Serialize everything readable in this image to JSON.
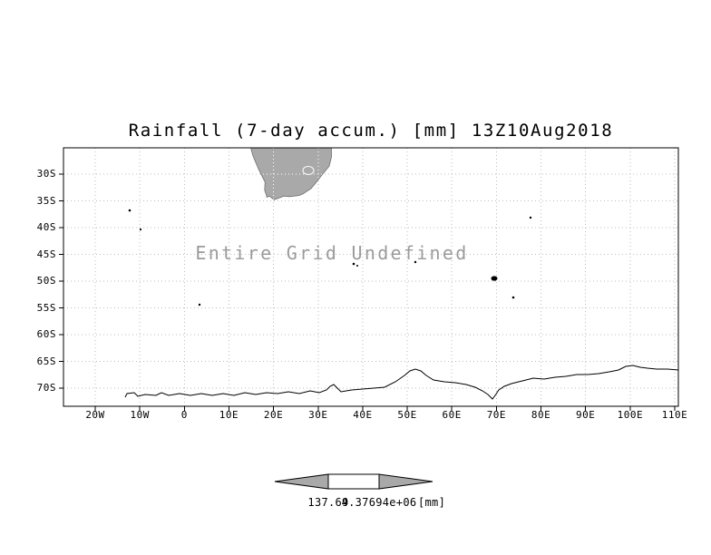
{
  "chart": {
    "title": "Rainfall (7-day accum.) [mm] 13Z10Aug2018",
    "undefined_label": "Entire Grid Undefined",
    "y_ticks": [
      "30S",
      "35S",
      "40S",
      "45S",
      "50S",
      "55S",
      "60S",
      "65S",
      "70S"
    ],
    "x_ticks": [
      "20W",
      "10W",
      "0",
      "10E",
      "20E",
      "30E",
      "40E",
      "50E",
      "60E",
      "70E",
      "80E",
      "90E",
      "100E",
      "110E"
    ],
    "colorbar": {
      "left_label": "137.69",
      "right_label": "4.37694e+06",
      "units_label": "[mm]"
    }
  },
  "colors": {
    "land_fill": "#a9a9a9",
    "land_outline": "#6e6e6e",
    "grid_line": "#bdbdbd",
    "grid_line_over_land": "#ffffff",
    "undefined_text": "#9b9b9b",
    "coast_line": "#000000",
    "frame": "#000000"
  },
  "chart_data": {
    "type": "heatmap",
    "title": "Rainfall (7-day accum.) [mm] 13Z10Aug2018",
    "xlabel": "",
    "ylabel": "",
    "x_tick_labels": [
      "20W",
      "10W",
      "0",
      "10E",
      "20E",
      "30E",
      "40E",
      "50E",
      "60E",
      "70E",
      "80E",
      "90E",
      "100E",
      "110E"
    ],
    "y_tick_labels": [
      "30S",
      "35S",
      "40S",
      "45S",
      "50S",
      "55S",
      "60S",
      "65S",
      "70S"
    ],
    "grid": true,
    "legend_position": "none",
    "values": [],
    "data_status": "Entire Grid Undefined",
    "annotation": "Entire Grid Undefined",
    "colorbar_labels": [
      "137.69",
      "4.37694e+06"
    ],
    "colorbar_units": "[mm]",
    "base_map": "coastlines: southern Africa (gray fill), Antarctica, sub-Antarctic islands"
  }
}
